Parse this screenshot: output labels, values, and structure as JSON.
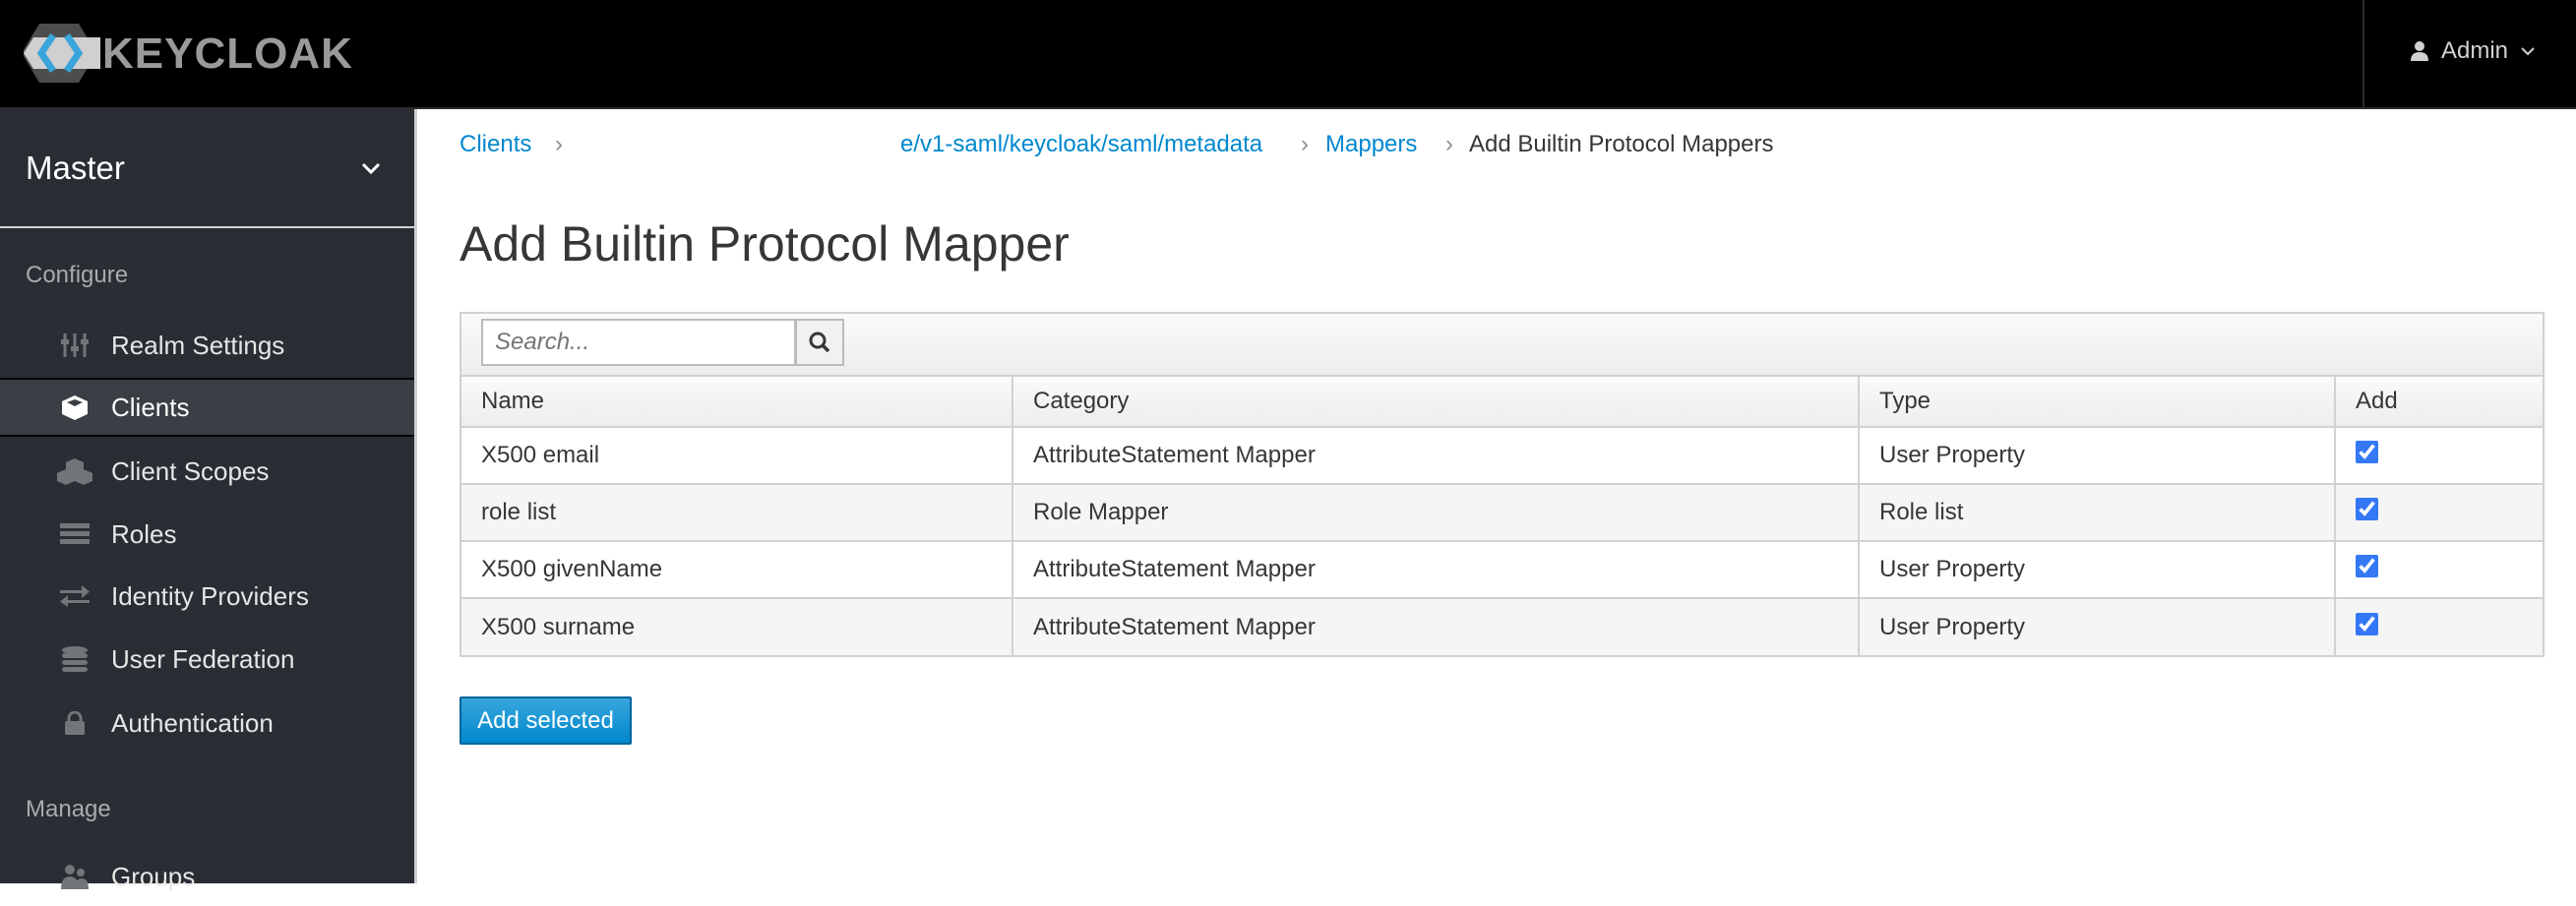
{
  "header": {
    "logo_text": "KEYCLOAK",
    "user_label": "Admin"
  },
  "sidebar": {
    "realm": "Master",
    "configure_label": "Configure",
    "manage_label": "Manage",
    "configure_items": [
      {
        "label": "Realm Settings",
        "icon": "sliders-icon"
      },
      {
        "label": "Clients",
        "icon": "cube-icon",
        "active": true
      },
      {
        "label": "Client Scopes",
        "icon": "cubes-icon"
      },
      {
        "label": "Roles",
        "icon": "tasks-icon"
      },
      {
        "label": "Identity Providers",
        "icon": "exchange-icon"
      },
      {
        "label": "User Federation",
        "icon": "database-icon"
      },
      {
        "label": "Authentication",
        "icon": "lock-icon"
      }
    ],
    "manage_items": [
      {
        "label": "Groups",
        "icon": "users-icon"
      }
    ]
  },
  "breadcrumb": {
    "clients": "Clients",
    "client": "e/v1-saml/keycloak/saml/metadata",
    "mappers": "Mappers",
    "current": "Add Builtin Protocol Mappers"
  },
  "page_title": "Add Builtin Protocol Mapper",
  "search": {
    "placeholder": "Search...",
    "value": ""
  },
  "table": {
    "headers": [
      "Name",
      "Category",
      "Type",
      "Add"
    ],
    "rows": [
      {
        "name": "X500 email",
        "category": "AttributeStatement Mapper",
        "type": "User Property",
        "checked": true
      },
      {
        "name": "role list",
        "category": "Role Mapper",
        "type": "Role list",
        "checked": true
      },
      {
        "name": "X500 givenName",
        "category": "AttributeStatement Mapper",
        "type": "User Property",
        "checked": true
      },
      {
        "name": "X500 surname",
        "category": "AttributeStatement Mapper",
        "type": "User Property",
        "checked": true
      }
    ]
  },
  "add_selected_label": "Add selected",
  "colors": {
    "link": "#0088ce",
    "sidebar_bg": "#292e34",
    "primary_button": "#0088ce",
    "checkbox": "#3478f6"
  }
}
